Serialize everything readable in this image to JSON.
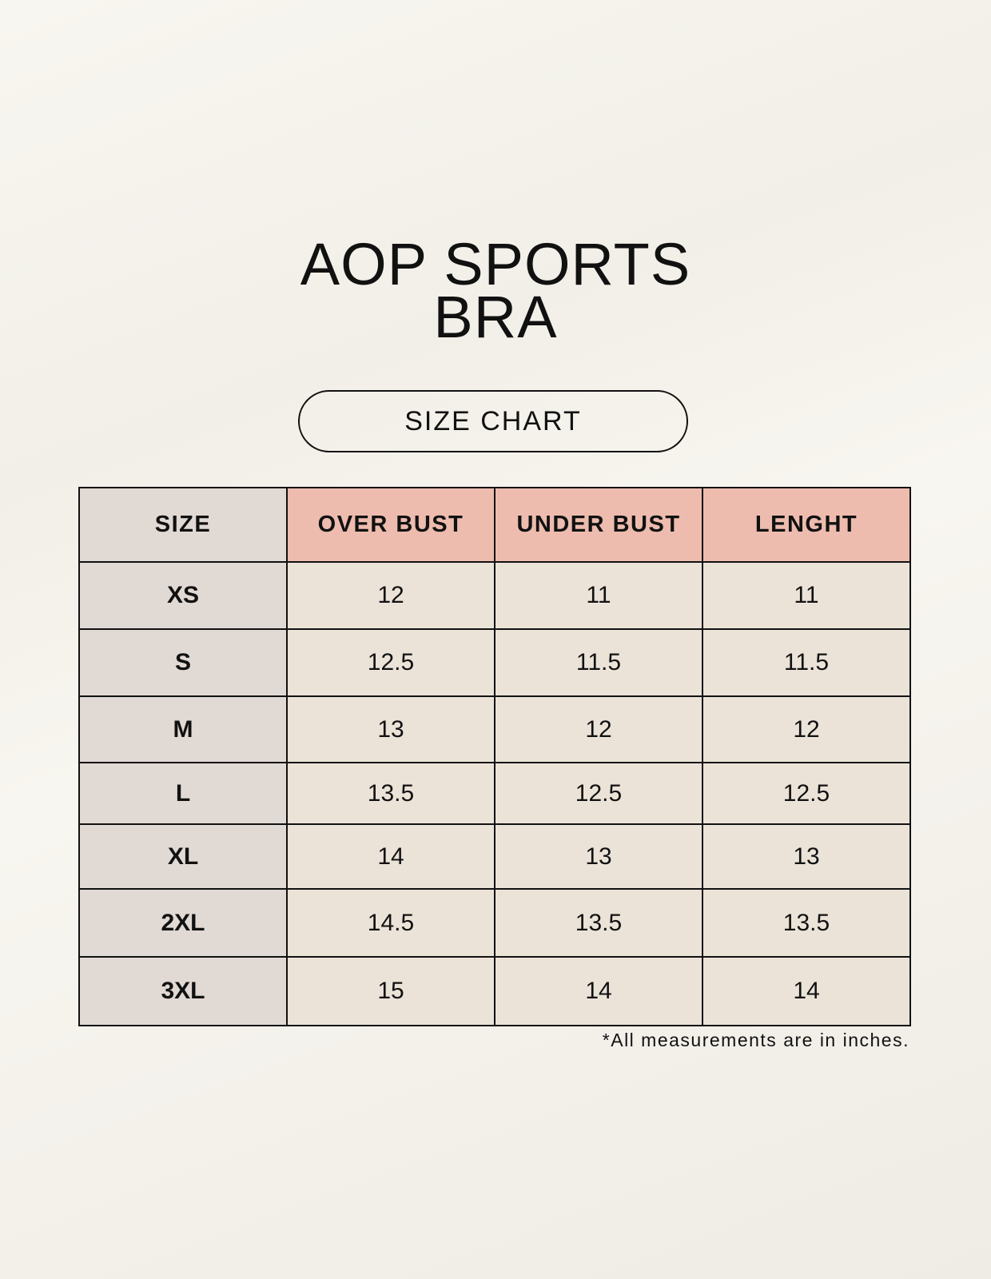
{
  "title_line1": "AOP SPORTS",
  "title_line2": "BRA",
  "subtitle": "SIZE CHART",
  "colors": {
    "size_column": "#e1d9d4",
    "header_measure": "#edbcae",
    "cell": "#ebe3d8"
  },
  "table": {
    "headers": [
      "SIZE",
      "OVER BUST",
      "UNDER BUST",
      "LENGHT"
    ],
    "rows": [
      [
        "XS",
        "12",
        "11",
        "11"
      ],
      [
        "S",
        "12.5",
        "11.5",
        "11.5"
      ],
      [
        "M",
        "13",
        "12",
        "12"
      ],
      [
        "L",
        "13.5",
        "12.5",
        "12.5"
      ],
      [
        "XL",
        "14",
        "13",
        "13"
      ],
      [
        "2XL",
        "14.5",
        "13.5",
        "13.5"
      ],
      [
        "3XL",
        "15",
        "14",
        "14"
      ]
    ]
  },
  "footnote": "*All measurements are in inches."
}
